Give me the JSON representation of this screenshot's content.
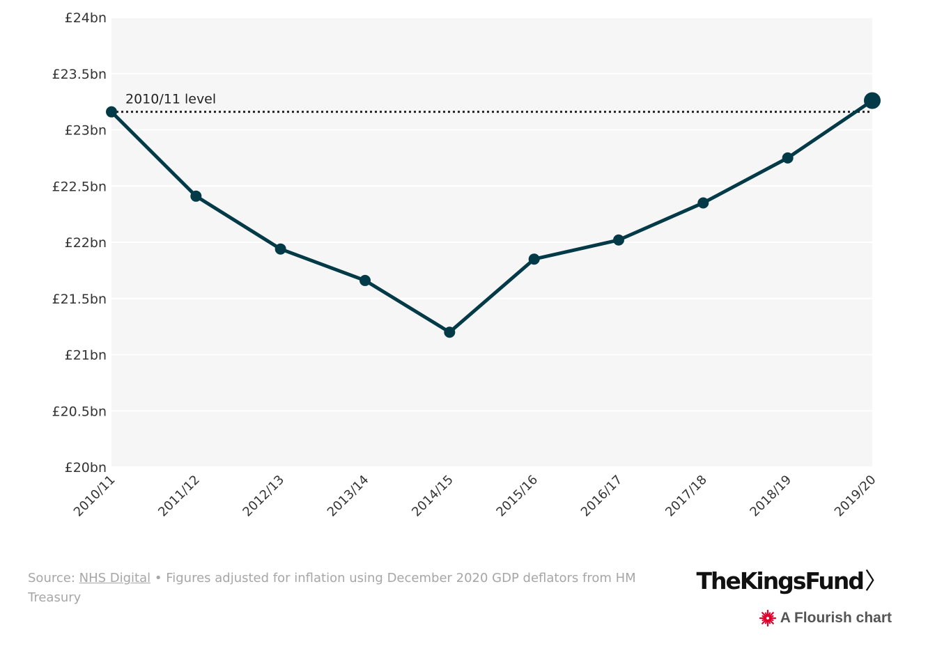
{
  "chart_data": {
    "type": "line",
    "categories": [
      "2010/11",
      "2011/12",
      "2012/13",
      "2013/14",
      "2014/15",
      "2015/16",
      "2016/17",
      "2017/18",
      "2018/19",
      "2019/20"
    ],
    "series": [
      {
        "values": [
          23.16,
          22.41,
          21.94,
          21.66,
          21.2,
          21.85,
          22.02,
          22.35,
          22.75,
          23.26
        ]
      }
    ],
    "reference_line": {
      "label": "2010/11 level",
      "value": 23.16,
      "style": "dotted"
    },
    "y_ticks": [
      20,
      20.5,
      21,
      21.5,
      22,
      22.5,
      23,
      23.5,
      24
    ],
    "y_tick_labels": [
      "£20bn",
      "£20.5bn",
      "£21bn",
      "£21.5bn",
      "£22bn",
      "£22.5bn",
      "£23bn",
      "£23.5bn",
      "£24bn"
    ],
    "ylim": [
      20,
      24
    ],
    "grid": true,
    "legend": "none",
    "colors": {
      "line": "#023a47",
      "plot_bg": "#f6f6f6",
      "grid": "#ffffff",
      "reference": "#222222"
    }
  },
  "footer": {
    "source_prefix": "Source: ",
    "source_link": "NHS Digital",
    "source_rest": " • Figures adjusted for inflation using December 2020 GDP deflators from HM Treasury"
  },
  "brand": {
    "name": "TheKingsFund",
    "chevron": "〉"
  },
  "flourish": {
    "label": "A Flourish chart",
    "icon": "flourish-burst-icon",
    "icon_color": "#e0002b"
  }
}
